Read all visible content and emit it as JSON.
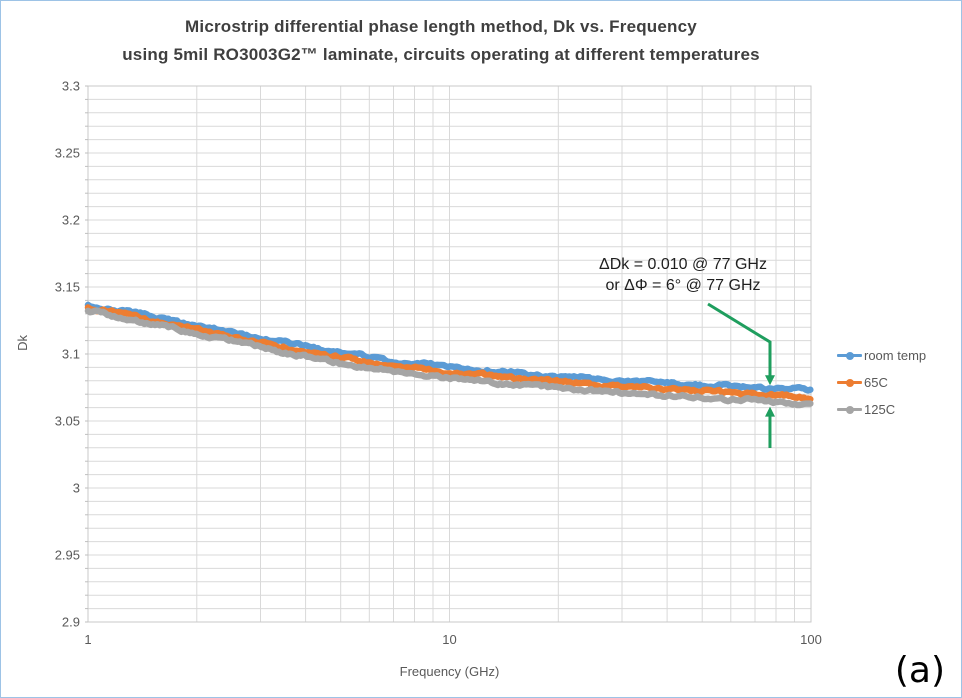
{
  "title": {
    "line1": "Microstrip differential phase length method, Dk vs. Frequency",
    "line2": "using 5mil RO3003G2™ laminate, circuits operating at different temperatures"
  },
  "corner_label": "(a)",
  "annotation": {
    "line1": "ΔDk = 0.010 @ 77 GHz",
    "line2": "or ΔΦ = 6° @ 77 GHz",
    "target_ghz": 77,
    "arrow_color": "#1F9E5E"
  },
  "axes": {
    "x": {
      "label": "Frequency (GHz)",
      "scale": "log",
      "min": 1,
      "max": 100,
      "tick_values": [
        1,
        10,
        100
      ],
      "tick_labels": [
        "1",
        "10",
        "100"
      ]
    },
    "y": {
      "label": "Dk",
      "min": 2.9,
      "max": 3.3,
      "tick_values": [
        3.3,
        3.25,
        3.2,
        3.15,
        3.1,
        3.05,
        3.0,
        2.95,
        2.9
      ],
      "tick_labels": [
        "3.3",
        "3.25",
        "3.2",
        "3.15",
        "3.1",
        "3.05",
        "3",
        "2.95",
        "2.9"
      ],
      "gridline_step": 0.01
    }
  },
  "legend": {
    "items": [
      {
        "label": "room temp",
        "color": "#5B9BD5"
      },
      {
        "label": "65C",
        "color": "#ED7D31"
      },
      {
        "label": "125C",
        "color": "#A5A5A5"
      }
    ]
  },
  "colors": {
    "gridline": "#D9D9D9",
    "plot_border": "#C9C9C9",
    "tick_mark": "#BFBFBF",
    "tick_text": "#595959",
    "window_border": "#9DC3E6"
  },
  "chart_data": {
    "type": "line",
    "title": "Microstrip differential phase length method, Dk vs. Frequency using 5mil RO3003G2™ laminate, circuits operating at different temperatures",
    "xlabel": "Frequency (GHz)",
    "ylabel": "Dk",
    "x_scale": "log",
    "xlim": [
      1,
      100
    ],
    "ylim": [
      2.9,
      3.3
    ],
    "grid": true,
    "legend_position": "right",
    "x": [
      1,
      1.3,
      1.7,
      2,
      2.5,
      3,
      4,
      5,
      7,
      10,
      15,
      20,
      30,
      50,
      77,
      100
    ],
    "series": [
      {
        "name": "room temp",
        "color": "#5B9BD5",
        "values": [
          3.136,
          3.131,
          3.125,
          3.121,
          3.116,
          3.112,
          3.106,
          3.101,
          3.095,
          3.09,
          3.086,
          3.083,
          3.08,
          3.077,
          3.0745,
          3.0725
        ]
      },
      {
        "name": "65C",
        "color": "#ED7D31",
        "values": [
          3.1345,
          3.129,
          3.122,
          3.118,
          3.113,
          3.108,
          3.102,
          3.097,
          3.091,
          3.086,
          3.082,
          3.079,
          3.0755,
          3.0725,
          3.0695,
          3.067
        ]
      },
      {
        "name": "125C",
        "color": "#A5A5A5",
        "values": [
          3.132,
          3.126,
          3.119,
          3.115,
          3.11,
          3.105,
          3.098,
          3.093,
          3.087,
          3.082,
          3.0775,
          3.0745,
          3.071,
          3.0675,
          3.0645,
          3.0615
        ]
      }
    ],
    "annotations": [
      {
        "text": "ΔDk = 0.010 @ 77 GHz or ΔΦ = 6° @ 77 GHz",
        "x_ghz": 77,
        "dk_delta": 0.01,
        "phase_delta_deg": 6
      }
    ]
  }
}
